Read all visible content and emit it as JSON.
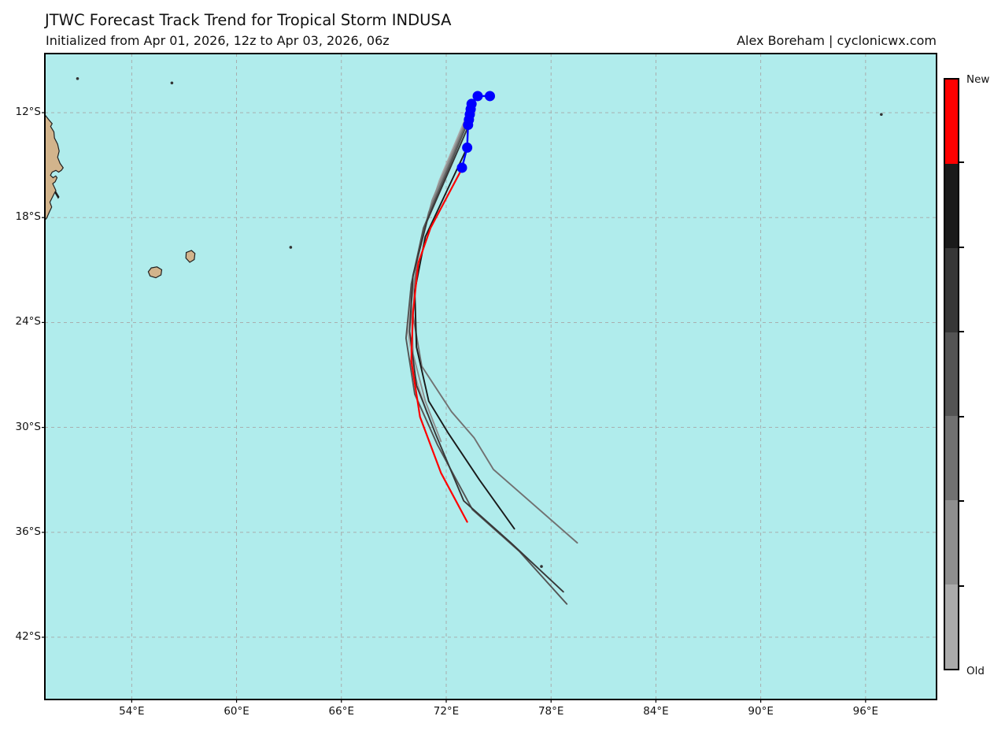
{
  "header": {
    "title": "JTWC Forecast Track Trend for Tropical Storm INDUSA",
    "subtitle": "Initialized from Apr 01, 2026, 12z to Apr 03, 2026, 06z",
    "attribution": "Alex Boreham | cyclonicwx.com"
  },
  "colorbar": {
    "new_label": "New",
    "old_label": "Old",
    "segments_top_to_bottom": [
      "#ff0000",
      "#1a1a1a",
      "#373737",
      "#545454",
      "#717171",
      "#8e8e8e",
      "#ababab"
    ]
  },
  "chart_data": {
    "type": "line",
    "title": "JTWC Forecast Track Trend for Tropical Storm INDUSA",
    "subtitle": "Initialized from Apr 01, 2026, 12z to Apr 03, 2026, 06z",
    "grid": true,
    "x_axis": {
      "suffix": "°E",
      "ticks": [
        54,
        60,
        66,
        72,
        78,
        84,
        90,
        96
      ],
      "range": [
        49.03,
        100.06
      ]
    },
    "y_axis": {
      "suffix": "°S",
      "ticks": [
        12,
        18,
        24,
        30,
        36,
        42
      ],
      "range": [
        8.62,
        45.56
      ]
    },
    "colors": {
      "ocean": "#b0ecec",
      "land_fill": "#d2b48c",
      "land_stroke": "#202020",
      "gridline": "#a6a6a6",
      "axis": "#000000",
      "observed": "#0000ff",
      "newest": "#ff0000"
    },
    "observed_track": {
      "label": "observed-positions",
      "color": "#0000ff",
      "points_lon_latS": [
        [
          74.5,
          11.05
        ],
        [
          73.8,
          11.05
        ],
        [
          73.45,
          11.5
        ],
        [
          73.4,
          11.8
        ],
        [
          73.35,
          12.1
        ],
        [
          73.3,
          12.4
        ],
        [
          73.25,
          12.7
        ],
        [
          73.2,
          14.0
        ],
        [
          72.9,
          15.15
        ]
      ]
    },
    "forecast_tracks_old_to_new": [
      {
        "label": "run-1-oldest",
        "color": "#ababab",
        "points_lon_latS": [
          [
            73.45,
            11.5
          ],
          [
            71.6,
            15.9
          ],
          [
            70.6,
            19.1
          ],
          [
            70.0,
            21.8
          ],
          [
            69.8,
            24.5
          ],
          [
            70.2,
            27.0
          ],
          [
            70.9,
            29.2
          ]
        ]
      },
      {
        "label": "run-2",
        "color": "#8e8e8e",
        "points_lon_latS": [
          [
            73.4,
            11.8
          ],
          [
            71.2,
            17.0
          ],
          [
            70.4,
            20.0
          ],
          [
            70.0,
            22.9
          ],
          [
            70.1,
            25.8
          ],
          [
            70.8,
            28.5
          ],
          [
            71.7,
            30.8
          ]
        ]
      },
      {
        "label": "run-3",
        "color": "#717171",
        "points_lon_latS": [
          [
            73.35,
            12.1
          ],
          [
            71.0,
            17.7
          ],
          [
            70.3,
            20.6
          ],
          [
            70.1,
            23.6
          ],
          [
            70.6,
            26.5
          ],
          [
            72.3,
            29.1
          ],
          [
            73.6,
            30.6
          ],
          [
            74.7,
            32.4
          ],
          [
            79.5,
            36.6
          ]
        ]
      },
      {
        "label": "run-4",
        "color": "#545454",
        "points_lon_latS": [
          [
            73.3,
            12.4
          ],
          [
            70.7,
            18.6
          ],
          [
            70.0,
            21.8
          ],
          [
            69.7,
            24.9
          ],
          [
            70.2,
            28.1
          ],
          [
            71.5,
            31.0
          ],
          [
            73.5,
            34.7
          ],
          [
            76.2,
            37.1
          ],
          [
            78.9,
            40.1
          ]
        ]
      },
      {
        "label": "run-5",
        "color": "#373737",
        "points_lon_latS": [
          [
            73.3,
            12.7
          ],
          [
            70.9,
            18.2
          ],
          [
            70.1,
            21.3
          ],
          [
            69.9,
            24.5
          ],
          [
            70.3,
            27.6
          ],
          [
            71.4,
            30.4
          ],
          [
            73.0,
            34.2
          ],
          [
            75.7,
            36.6
          ],
          [
            78.7,
            39.4
          ]
        ]
      },
      {
        "label": "run-6",
        "color": "#1a1a1a",
        "points_lon_latS": [
          [
            73.2,
            14.0
          ],
          [
            70.8,
            19.1
          ],
          [
            70.2,
            22.2
          ],
          [
            70.3,
            25.4
          ],
          [
            71.0,
            28.5
          ],
          [
            72.1,
            30.3
          ],
          [
            73.9,
            33.0
          ],
          [
            75.9,
            35.8
          ]
        ]
      },
      {
        "label": "run-7-newest",
        "color": "#ff0000",
        "points_lon_latS": [
          [
            72.9,
            15.2
          ],
          [
            71.1,
            18.6
          ],
          [
            70.4,
            20.6
          ],
          [
            70.1,
            23.4
          ],
          [
            70.0,
            26.2
          ],
          [
            70.5,
            29.4
          ],
          [
            71.7,
            32.6
          ],
          [
            73.2,
            35.4
          ]
        ]
      }
    ],
    "land": [
      {
        "name": "madagascar-northeast-coast",
        "points_lon_latS": [
          [
            48.9,
            12.0
          ],
          [
            49.08,
            12.18
          ],
          [
            49.26,
            12.41
          ],
          [
            49.45,
            12.63
          ],
          [
            49.36,
            12.79
          ],
          [
            49.55,
            13.1
          ],
          [
            49.58,
            13.45
          ],
          [
            49.76,
            13.8
          ],
          [
            49.85,
            14.2
          ],
          [
            49.76,
            14.55
          ],
          [
            49.9,
            14.9
          ],
          [
            50.08,
            15.15
          ],
          [
            49.97,
            15.3
          ],
          [
            49.82,
            15.4
          ],
          [
            49.66,
            15.3
          ],
          [
            49.45,
            15.4
          ],
          [
            49.35,
            15.58
          ],
          [
            49.5,
            15.72
          ],
          [
            49.65,
            15.62
          ],
          [
            49.73,
            15.72
          ],
          [
            49.62,
            15.95
          ],
          [
            49.48,
            16.06
          ],
          [
            49.66,
            16.45
          ],
          [
            49.54,
            16.68
          ],
          [
            49.32,
            17.12
          ],
          [
            49.42,
            17.4
          ],
          [
            49.27,
            17.72
          ],
          [
            49.14,
            18.02
          ],
          [
            48.9,
            18.3
          ]
        ]
      },
      {
        "name": "reunion-island",
        "points_lon_latS": [
          [
            54.95,
            21.1
          ],
          [
            55.12,
            20.88
          ],
          [
            55.45,
            20.82
          ],
          [
            55.72,
            20.98
          ],
          [
            55.68,
            21.28
          ],
          [
            55.38,
            21.44
          ],
          [
            55.05,
            21.34
          ]
        ]
      },
      {
        "name": "mauritius-island",
        "points_lon_latS": [
          [
            57.12,
            20.0
          ],
          [
            57.42,
            19.88
          ],
          [
            57.62,
            20.05
          ],
          [
            57.58,
            20.4
          ],
          [
            57.32,
            20.56
          ],
          [
            57.1,
            20.32
          ]
        ]
      }
    ],
    "islets_dark": [
      {
        "name": "sainte-marie-islet",
        "points_lon_latS": [
          [
            49.66,
            16.52
          ],
          [
            49.84,
            16.82
          ],
          [
            49.79,
            16.89
          ],
          [
            49.61,
            16.58
          ]
        ]
      }
    ],
    "island_specks": [
      {
        "name": "glorioso-speck",
        "lon": 50.9,
        "latS": 10.05
      },
      {
        "name": "agalega-speck",
        "lon": 56.3,
        "latS": 10.3
      },
      {
        "name": "rodrigues-speck",
        "lon": 63.1,
        "latS": 19.7
      },
      {
        "name": "cocos-speck",
        "lon": 96.9,
        "latS": 12.1
      },
      {
        "name": "amsterdam-speck",
        "lon": 77.45,
        "latS": 37.95
      }
    ]
  }
}
